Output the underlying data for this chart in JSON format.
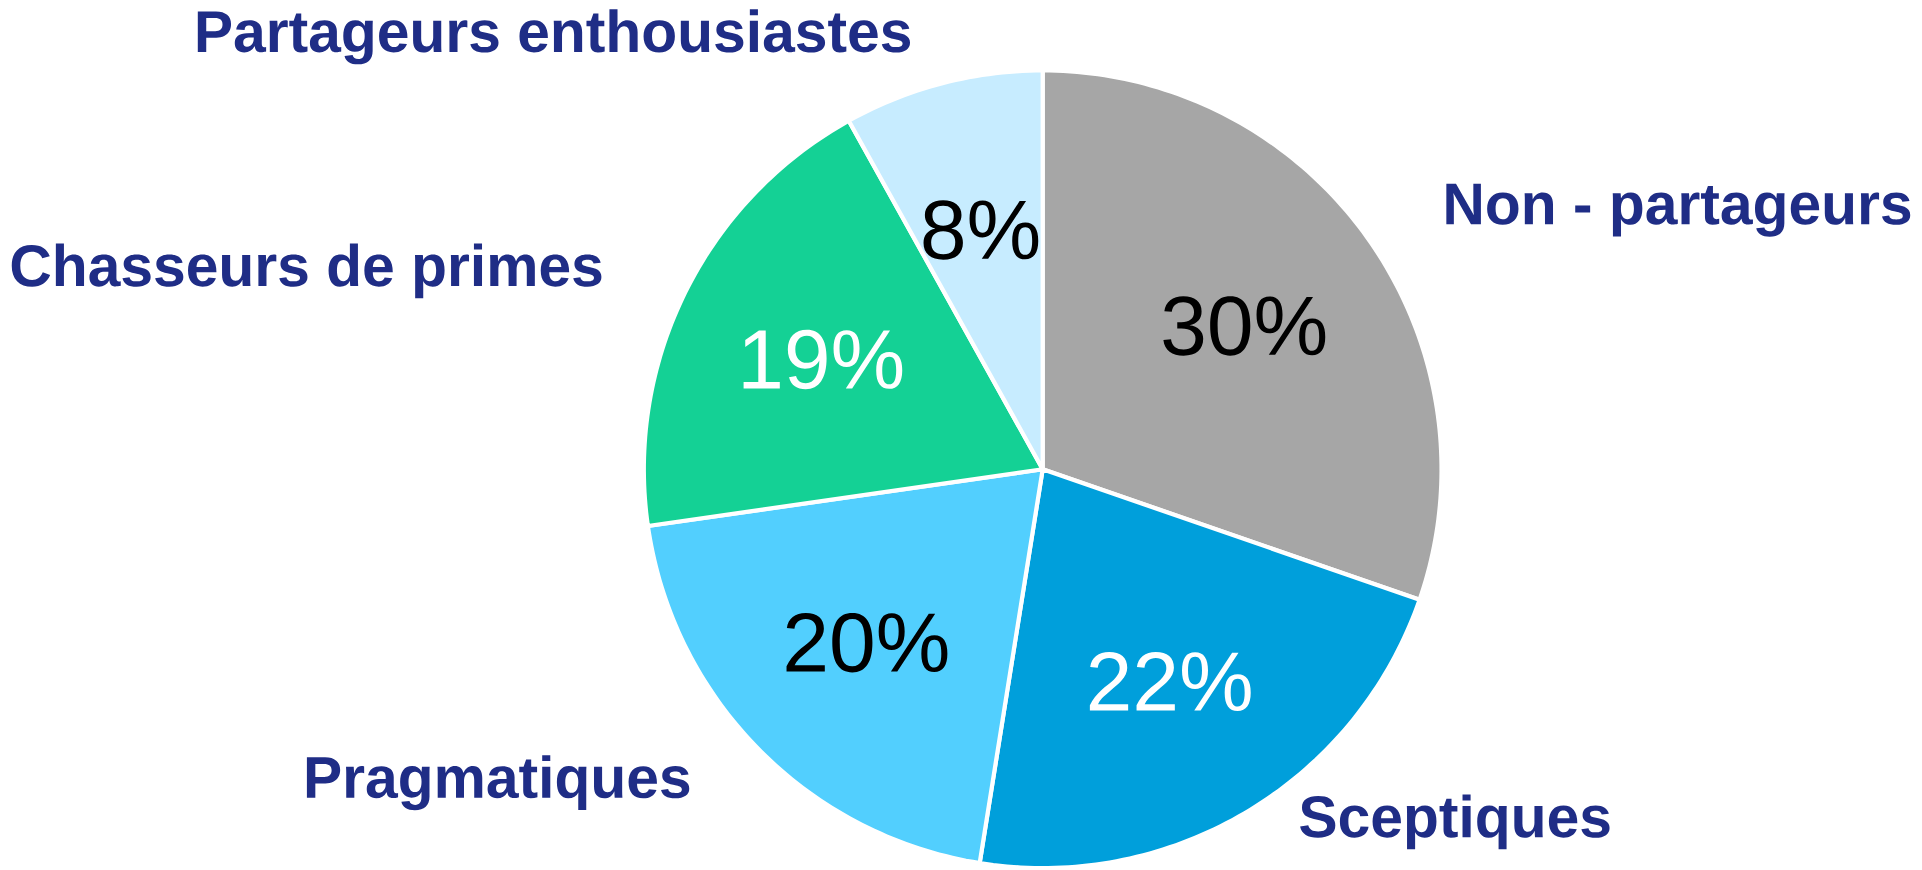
{
  "chart_data": {
    "type": "pie",
    "categories": [
      "Non - partageurs",
      "Sceptiques",
      "Pragmatiques",
      "Chasseurs de primes",
      "Partageurs enthousiastes"
    ],
    "values": [
      30,
      22,
      20,
      19,
      8
    ],
    "value_labels": [
      "30%",
      "22%",
      "20%",
      "19%",
      "8%"
    ],
    "colors": [
      "#a6a6a6",
      "#009fdb",
      "#52cffe",
      "#14d195",
      "#c7ecff"
    ]
  }
}
